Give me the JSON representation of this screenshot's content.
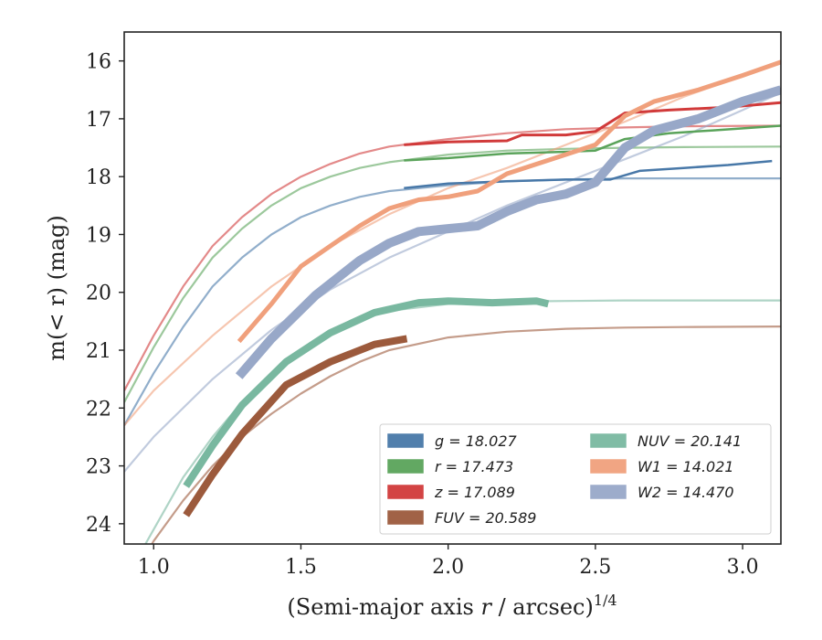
{
  "chart_data": {
    "type": "line",
    "xlabel_main": "(Semi-major axis ",
    "xlabel_var": "r",
    "xlabel_unit": " / arcsec)",
    "xlabel_exp": "1/4",
    "ylabel": "m(< r) (mag)",
    "xlim": [
      0.9,
      3.13
    ],
    "ylim": [
      24.35,
      15.5
    ],
    "y_inverted": true,
    "grid": false,
    "legend_position": "lower-right",
    "xticks": [
      "1.0",
      "1.5",
      "2.0",
      "2.5",
      "3.0"
    ],
    "xtick_values": [
      1.0,
      1.5,
      2.0,
      2.5,
      3.0
    ],
    "yticks": [
      "16",
      "17",
      "18",
      "19",
      "20",
      "21",
      "22",
      "23",
      "24"
    ],
    "ytick_values": [
      16,
      17,
      18,
      19,
      20,
      21,
      22,
      23,
      24
    ],
    "legend": [
      {
        "label": "g = 18.027",
        "color": "#4878a8"
      },
      {
        "label": "r = 17.473",
        "color": "#5aa35a"
      },
      {
        "label": "z = 17.089",
        "color": "#d13a3a"
      },
      {
        "label": "FUV = 20.589",
        "color": "#9c5a3c"
      },
      {
        "label": "NUV = 20.141",
        "color": "#79b8a0"
      },
      {
        "label": "W1 = 14.021",
        "color": "#f0a07c"
      },
      {
        "label": "W2 = 14.470",
        "color": "#98a8c8"
      }
    ],
    "series": [
      {
        "name": "g",
        "color": "#4878a8",
        "width": 2.5,
        "model": [
          [
            0.9,
            22.3
          ],
          [
            1.0,
            21.4
          ],
          [
            1.1,
            20.6
          ],
          [
            1.2,
            19.9
          ],
          [
            1.3,
            19.4
          ],
          [
            1.4,
            19.0
          ],
          [
            1.5,
            18.7
          ],
          [
            1.6,
            18.5
          ],
          [
            1.7,
            18.35
          ],
          [
            1.8,
            18.25
          ],
          [
            2.0,
            18.15
          ],
          [
            2.2,
            18.08
          ],
          [
            2.4,
            18.05
          ],
          [
            2.6,
            18.03
          ],
          [
            2.8,
            18.03
          ],
          [
            3.13,
            18.03
          ]
        ],
        "data": [
          [
            1.85,
            18.2
          ],
          [
            2.0,
            18.12
          ],
          [
            2.2,
            18.08
          ],
          [
            2.4,
            18.05
          ],
          [
            2.55,
            18.05
          ],
          [
            2.65,
            17.9
          ],
          [
            2.8,
            17.85
          ],
          [
            2.95,
            17.8
          ],
          [
            3.1,
            17.73
          ]
        ]
      },
      {
        "name": "r",
        "color": "#5aa35a",
        "width": 2.5,
        "model": [
          [
            0.9,
            21.9
          ],
          [
            1.0,
            20.95
          ],
          [
            1.1,
            20.1
          ],
          [
            1.2,
            19.4
          ],
          [
            1.3,
            18.9
          ],
          [
            1.4,
            18.5
          ],
          [
            1.5,
            18.2
          ],
          [
            1.6,
            18.0
          ],
          [
            1.7,
            17.85
          ],
          [
            1.8,
            17.75
          ],
          [
            2.0,
            17.62
          ],
          [
            2.2,
            17.55
          ],
          [
            2.4,
            17.52
          ],
          [
            2.6,
            17.5
          ],
          [
            2.8,
            17.49
          ],
          [
            3.13,
            17.48
          ]
        ],
        "data": [
          [
            1.85,
            17.72
          ],
          [
            2.0,
            17.68
          ],
          [
            2.2,
            17.6
          ],
          [
            2.4,
            17.57
          ],
          [
            2.5,
            17.55
          ],
          [
            2.6,
            17.35
          ],
          [
            2.75,
            17.25
          ],
          [
            2.9,
            17.2
          ],
          [
            3.13,
            17.12
          ]
        ]
      },
      {
        "name": "z",
        "color": "#d13a3a",
        "width": 3,
        "model": [
          [
            0.9,
            21.7
          ],
          [
            1.0,
            20.75
          ],
          [
            1.1,
            19.9
          ],
          [
            1.2,
            19.2
          ],
          [
            1.3,
            18.7
          ],
          [
            1.4,
            18.3
          ],
          [
            1.5,
            18.0
          ],
          [
            1.6,
            17.78
          ],
          [
            1.7,
            17.6
          ],
          [
            1.8,
            17.48
          ],
          [
            2.0,
            17.35
          ],
          [
            2.2,
            17.25
          ],
          [
            2.4,
            17.18
          ],
          [
            2.6,
            17.15
          ],
          [
            2.8,
            17.13
          ],
          [
            3.13,
            17.12
          ]
        ],
        "data": [
          [
            1.85,
            17.45
          ],
          [
            2.0,
            17.4
          ],
          [
            2.2,
            17.38
          ],
          [
            2.25,
            17.28
          ],
          [
            2.4,
            17.28
          ],
          [
            2.5,
            17.22
          ],
          [
            2.6,
            16.9
          ],
          [
            2.75,
            16.85
          ],
          [
            2.95,
            16.8
          ],
          [
            3.13,
            16.72
          ]
        ]
      },
      {
        "name": "FUV",
        "color": "#9c5a3c",
        "width": 8,
        "model": [
          [
            0.9,
            25.2
          ],
          [
            1.0,
            24.3
          ],
          [
            1.1,
            23.6
          ],
          [
            1.2,
            23.0
          ],
          [
            1.3,
            22.5
          ],
          [
            1.4,
            22.1
          ],
          [
            1.5,
            21.75
          ],
          [
            1.6,
            21.45
          ],
          [
            1.7,
            21.2
          ],
          [
            1.8,
            21.0
          ],
          [
            2.0,
            20.78
          ],
          [
            2.2,
            20.68
          ],
          [
            2.4,
            20.63
          ],
          [
            2.6,
            20.61
          ],
          [
            2.8,
            20.6
          ],
          [
            3.13,
            20.59
          ]
        ],
        "data": [
          [
            1.11,
            23.85
          ],
          [
            1.2,
            23.15
          ],
          [
            1.3,
            22.45
          ],
          [
            1.45,
            21.6
          ],
          [
            1.6,
            21.2
          ],
          [
            1.75,
            20.9
          ],
          [
            1.86,
            20.8
          ]
        ]
      },
      {
        "name": "NUV",
        "color": "#79b8a0",
        "width": 8,
        "model": [
          [
            0.9,
            25.0
          ],
          [
            1.0,
            24.1
          ],
          [
            1.1,
            23.2
          ],
          [
            1.2,
            22.5
          ],
          [
            1.3,
            21.9
          ],
          [
            1.4,
            21.4
          ],
          [
            1.5,
            21.0
          ],
          [
            1.6,
            20.7
          ],
          [
            1.7,
            20.48
          ],
          [
            1.8,
            20.32
          ],
          [
            2.0,
            20.2
          ],
          [
            2.2,
            20.16
          ],
          [
            2.4,
            20.15
          ],
          [
            2.6,
            20.14
          ],
          [
            2.8,
            20.14
          ],
          [
            3.13,
            20.14
          ]
        ],
        "data": [
          [
            1.11,
            23.35
          ],
          [
            1.2,
            22.65
          ],
          [
            1.3,
            21.95
          ],
          [
            1.45,
            21.2
          ],
          [
            1.6,
            20.7
          ],
          [
            1.75,
            20.35
          ],
          [
            1.9,
            20.18
          ],
          [
            2.0,
            20.15
          ],
          [
            2.15,
            20.18
          ],
          [
            2.3,
            20.15
          ],
          [
            2.34,
            20.2
          ]
        ]
      },
      {
        "name": "W1",
        "color": "#f0a07c",
        "width": 5,
        "model": [
          [
            0.9,
            22.3
          ],
          [
            1.0,
            21.7
          ],
          [
            1.2,
            20.75
          ],
          [
            1.4,
            19.9
          ],
          [
            1.6,
            19.2
          ],
          [
            1.8,
            18.65
          ],
          [
            2.0,
            18.2
          ],
          [
            2.2,
            17.85
          ],
          [
            2.4,
            17.45
          ],
          [
            2.6,
            17.05
          ],
          [
            2.8,
            16.62
          ],
          [
            3.0,
            16.25
          ],
          [
            3.13,
            16.0
          ]
        ],
        "data": [
          [
            1.29,
            20.85
          ],
          [
            1.4,
            20.2
          ],
          [
            1.5,
            19.55
          ],
          [
            1.6,
            19.2
          ],
          [
            1.7,
            18.85
          ],
          [
            1.8,
            18.55
          ],
          [
            1.9,
            18.4
          ],
          [
            2.0,
            18.35
          ],
          [
            2.1,
            18.25
          ],
          [
            2.2,
            17.95
          ],
          [
            2.35,
            17.7
          ],
          [
            2.5,
            17.45
          ],
          [
            2.6,
            16.95
          ],
          [
            2.7,
            16.7
          ],
          [
            2.85,
            16.5
          ],
          [
            3.0,
            16.25
          ],
          [
            3.13,
            16.02
          ]
        ]
      },
      {
        "name": "W2",
        "color": "#98a8c8",
        "width": 10,
        "model": [
          [
            0.9,
            23.1
          ],
          [
            1.0,
            22.5
          ],
          [
            1.2,
            21.5
          ],
          [
            1.4,
            20.65
          ],
          [
            1.6,
            19.95
          ],
          [
            1.8,
            19.4
          ],
          [
            2.0,
            18.95
          ],
          [
            2.2,
            18.5
          ],
          [
            2.4,
            18.1
          ],
          [
            2.6,
            17.7
          ],
          [
            2.8,
            17.3
          ],
          [
            3.0,
            16.85
          ],
          [
            3.13,
            16.55
          ]
        ],
        "data": [
          [
            1.29,
            21.45
          ],
          [
            1.4,
            20.8
          ],
          [
            1.55,
            20.05
          ],
          [
            1.7,
            19.45
          ],
          [
            1.8,
            19.15
          ],
          [
            1.9,
            18.95
          ],
          [
            2.0,
            18.9
          ],
          [
            2.1,
            18.85
          ],
          [
            2.2,
            18.6
          ],
          [
            2.3,
            18.4
          ],
          [
            2.4,
            18.3
          ],
          [
            2.5,
            18.1
          ],
          [
            2.6,
            17.5
          ],
          [
            2.7,
            17.2
          ],
          [
            2.85,
            17.0
          ],
          [
            3.0,
            16.7
          ],
          [
            3.13,
            16.5
          ]
        ]
      }
    ]
  }
}
